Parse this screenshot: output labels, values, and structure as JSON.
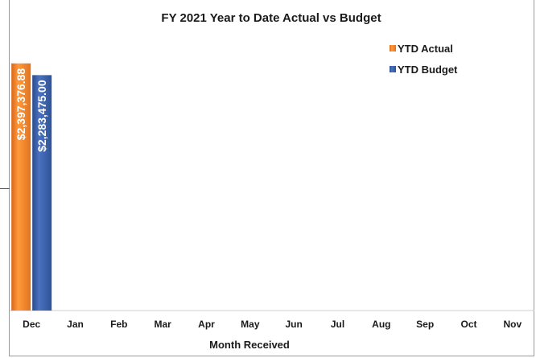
{
  "chart_data": {
    "type": "bar",
    "title": "FY 2021 Year to Date Actual vs Budget",
    "xlabel": "Month Received",
    "ylabel": "",
    "categories": [
      "Dec",
      "Jan",
      "Feb",
      "Mar",
      "Apr",
      "May",
      "Jun",
      "Jul",
      "Aug",
      "Sep",
      "Oct",
      "Nov"
    ],
    "series": [
      {
        "name": "YTD Actual",
        "color": "#f08a2c",
        "values": [
          2397376.88,
          null,
          null,
          null,
          null,
          null,
          null,
          null,
          null,
          null,
          null,
          null
        ],
        "labels": [
          "$2,397,376.88",
          "",
          "",
          "",
          "",
          "",
          "",
          "",
          "",
          "",
          "",
          ""
        ]
      },
      {
        "name": "YTD Budget",
        "color": "#3a5ea8",
        "values": [
          2283475.0,
          null,
          null,
          null,
          null,
          null,
          null,
          null,
          null,
          null,
          null,
          null
        ],
        "labels": [
          "$2,283,475.00",
          "",
          "",
          "",
          "",
          "",
          "",
          "",
          "",
          "",
          "",
          ""
        ]
      }
    ],
    "ylim": [
      0,
      2700000
    ],
    "grid": false,
    "legend_position": "top-right"
  }
}
